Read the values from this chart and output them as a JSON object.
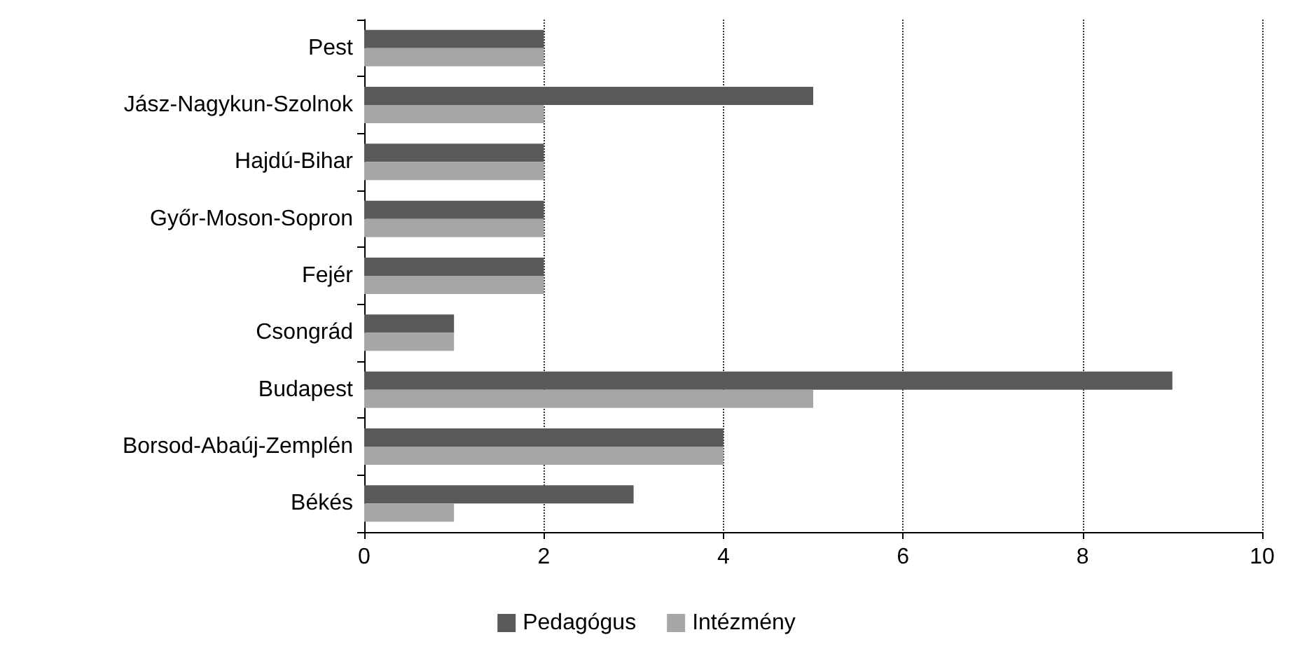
{
  "chart_data": {
    "type": "bar",
    "orientation": "horizontal",
    "categories": [
      "Pest",
      "Jász-Nagykun-Szolnok",
      "Hajdú-Bihar",
      "Győr-Moson-Sopron",
      "Fejér",
      "Csongrád",
      "Budapest",
      "Borsod-Abaúj-Zemplén",
      "Békés"
    ],
    "series": [
      {
        "name": "Pedagógus",
        "color": "#595959",
        "values": [
          2,
          5,
          2,
          2,
          2,
          1,
          9,
          4,
          3
        ]
      },
      {
        "name": "Intézmény",
        "color": "#a6a6a6",
        "values": [
          2,
          2,
          2,
          2,
          2,
          1,
          5,
          4,
          1
        ]
      }
    ],
    "xlim": [
      0,
      10
    ],
    "xticks": [
      0,
      2,
      4,
      6,
      8,
      10
    ],
    "grid": "x",
    "legend": "bottom"
  }
}
